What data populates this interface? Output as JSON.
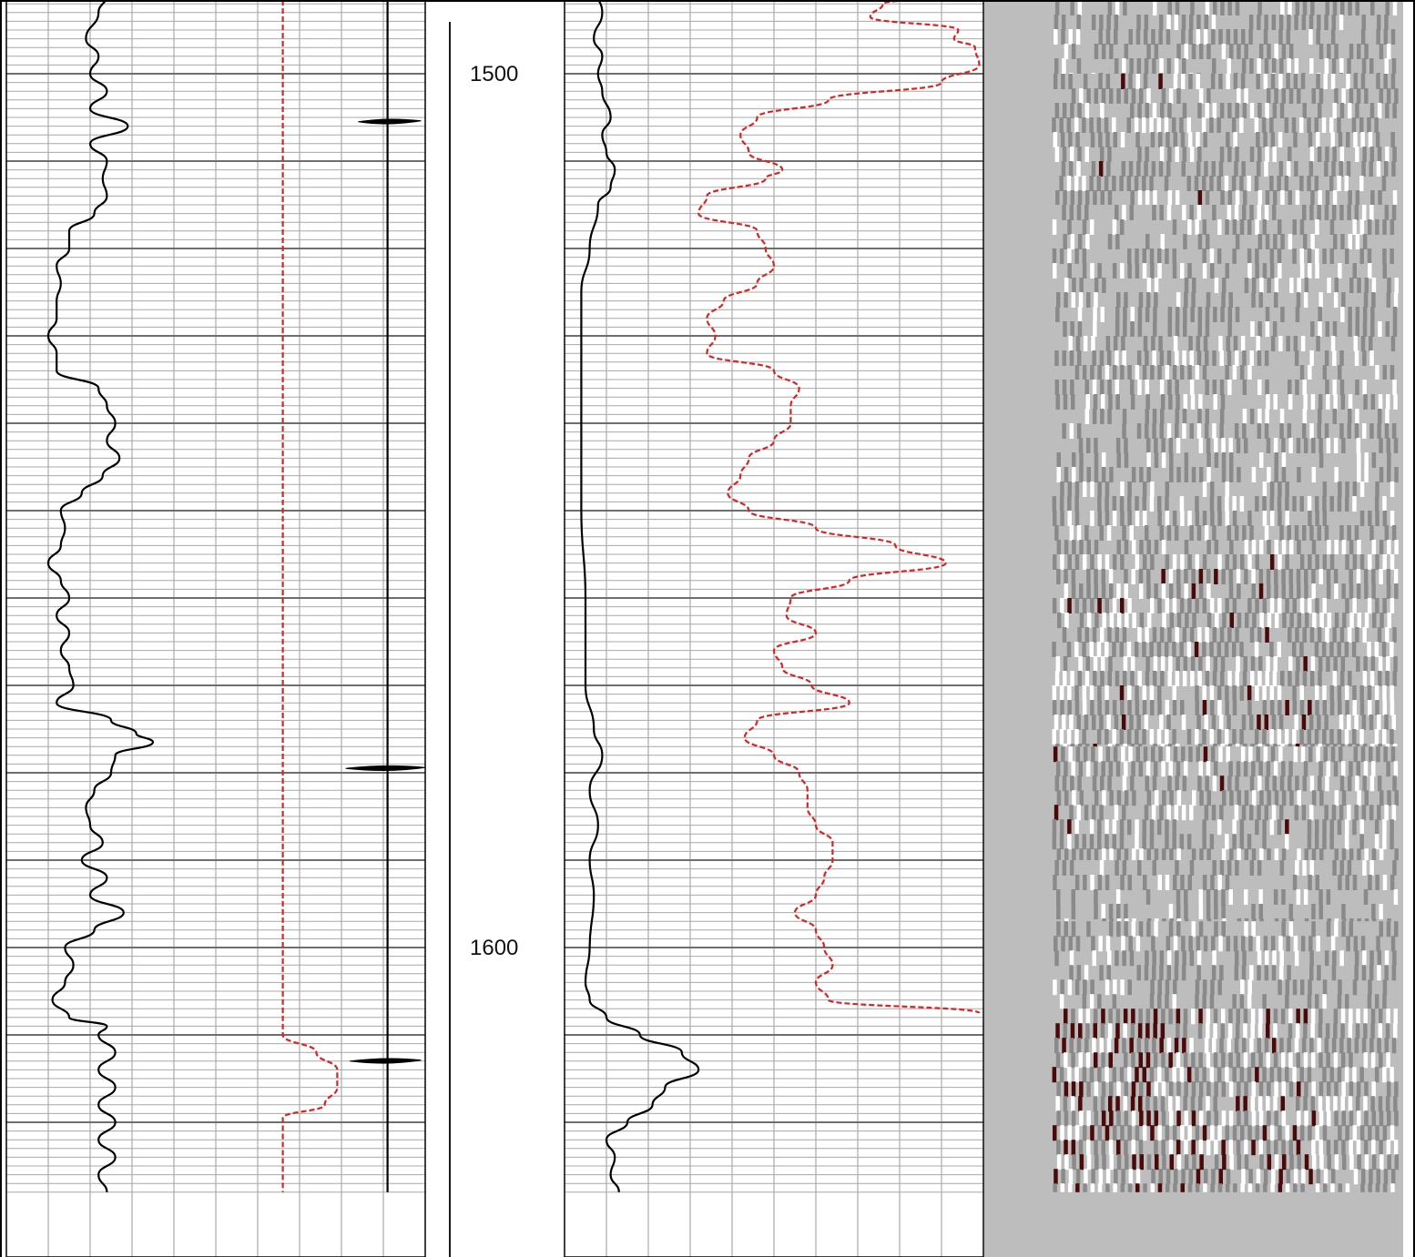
{
  "chart_data": {
    "type": "line",
    "title": "",
    "depth_axis": {
      "min": 1485,
      "max": 1628,
      "major_ticks": [
        1500,
        1600
      ],
      "tick_labels": [
        "1500",
        "1600"
      ]
    },
    "tracks": [
      {
        "name": "",
        "range": [
          0,
          10
        ],
        "series": [
          {
            "name": "",
            "color": "#000000",
            "style": "solid",
            "points": [
              [
                1485.0,
                2.9
              ],
              [
                1487.0,
                2.5
              ],
              [
                1489.0,
                2.1
              ],
              [
                1491.0,
                2.4
              ],
              [
                1493.0,
                2.2
              ],
              [
                1496.0,
                1.9
              ],
              [
                1498.0,
                2.2
              ],
              [
                1500.0,
                2.0
              ],
              [
                1502.0,
                2.4
              ],
              [
                1504.0,
                2.0
              ],
              [
                1506.0,
                2.9
              ],
              [
                1508.0,
                2.0
              ],
              [
                1510.0,
                2.4
              ],
              [
                1512.0,
                2.3
              ],
              [
                1514.0,
                2.4
              ],
              [
                1516.0,
                2.1
              ],
              [
                1518.0,
                1.5
              ],
              [
                1520.0,
                1.5
              ],
              [
                1522.0,
                1.2
              ],
              [
                1524.0,
                1.3
              ],
              [
                1526.0,
                1.2
              ],
              [
                1528.0,
                1.2
              ],
              [
                1530.0,
                1.0
              ],
              [
                1532.0,
                1.2
              ],
              [
                1534.0,
                1.2
              ],
              [
                1536.0,
                2.2
              ],
              [
                1538.0,
                2.4
              ],
              [
                1540.0,
                2.6
              ],
              [
                1542.0,
                2.4
              ],
              [
                1544.0,
                2.7
              ],
              [
                1546.0,
                2.3
              ],
              [
                1548.0,
                1.8
              ],
              [
                1550.0,
                1.3
              ],
              [
                1552.0,
                1.4
              ],
              [
                1554.0,
                1.3
              ],
              [
                1556.0,
                1.0
              ],
              [
                1558.0,
                1.3
              ],
              [
                1560.0,
                1.5
              ],
              [
                1562.0,
                1.2
              ],
              [
                1564.0,
                1.5
              ],
              [
                1566.0,
                1.3
              ],
              [
                1568.0,
                1.5
              ],
              [
                1570.0,
                1.6
              ],
              [
                1572.0,
                1.2
              ],
              [
                1574.0,
                2.5
              ],
              [
                1575.5,
                3.1
              ],
              [
                1576.5,
                3.5
              ],
              [
                1578.0,
                2.6
              ],
              [
                1580.0,
                2.5
              ],
              [
                1582.0,
                2.1
              ],
              [
                1584.0,
                1.9
              ],
              [
                1586.0,
                2.0
              ],
              [
                1588.0,
                2.3
              ],
              [
                1590.0,
                1.8
              ],
              [
                1592.0,
                2.4
              ],
              [
                1594.0,
                2.0
              ],
              [
                1596.0,
                2.8
              ],
              [
                1598.0,
                2.1
              ],
              [
                1600.0,
                1.4
              ],
              [
                1602.0,
                1.6
              ],
              [
                1604.0,
                1.4
              ],
              [
                1606.0,
                1.1
              ],
              [
                1608.0,
                1.5
              ],
              [
                1609.0,
                2.4
              ],
              [
                1610.0,
                2.2
              ],
              [
                1612.0,
                2.6
              ],
              [
                1614.0,
                2.2
              ],
              [
                1616.0,
                2.6
              ],
              [
                1618.0,
                2.2
              ],
              [
                1620.0,
                2.6
              ],
              [
                1622.0,
                2.2
              ],
              [
                1624.0,
                2.6
              ],
              [
                1626.0,
                2.2
              ],
              [
                1628.0,
                2.4
              ]
            ]
          },
          {
            "name": "",
            "color": "#dd2222",
            "style": "dashed",
            "points": [
              [
                1485.0,
                6.6
              ],
              [
                1610.0,
                6.6
              ],
              [
                1612.0,
                7.4
              ],
              [
                1614.0,
                7.9
              ],
              [
                1616.0,
                7.9
              ],
              [
                1618.0,
                7.6
              ],
              [
                1619.5,
                6.6
              ],
              [
                1628.0,
                6.6
              ]
            ]
          },
          {
            "name": "",
            "color": "#000000",
            "style": "solid",
            "points": [
              [
                1485.0,
                9.1
              ],
              [
                1628.0,
                9.1
              ]
            ]
          }
        ],
        "spikes": [
          {
            "depth": 1505.5,
            "x_from": 8.4,
            "x_to": 9.9
          },
          {
            "depth": 1579.5,
            "x_from": 8.1,
            "x_to": 10.0
          },
          {
            "depth": 1613.0,
            "x_from": 8.2,
            "x_to": 9.9
          }
        ]
      },
      {
        "name": "",
        "range": [
          0,
          10
        ],
        "series": [
          {
            "name": "",
            "color": "#000000",
            "style": "solid",
            "points": [
              [
                1485.0,
                0.6
              ],
              [
                1490.0,
                0.7
              ],
              [
                1493.0,
                0.9
              ],
              [
                1496.0,
                0.7
              ],
              [
                1498.0,
                0.9
              ],
              [
                1500.0,
                0.8
              ],
              [
                1502.0,
                0.9
              ],
              [
                1505.0,
                1.1
              ],
              [
                1507.0,
                0.9
              ],
              [
                1509.0,
                1.0
              ],
              [
                1511.0,
                1.2
              ],
              [
                1513.0,
                1.1
              ],
              [
                1515.0,
                0.8
              ],
              [
                1520.0,
                0.6
              ],
              [
                1525.0,
                0.4
              ],
              [
                1530.0,
                0.4
              ],
              [
                1540.0,
                0.4
              ],
              [
                1550.0,
                0.4
              ],
              [
                1560.0,
                0.5
              ],
              [
                1570.0,
                0.5
              ],
              [
                1575.0,
                0.7
              ],
              [
                1578.0,
                0.9
              ],
              [
                1582.0,
                0.6
              ],
              [
                1586.0,
                0.8
              ],
              [
                1590.0,
                0.6
              ],
              [
                1594.0,
                0.7
              ],
              [
                1600.0,
                0.6
              ],
              [
                1604.0,
                0.5
              ],
              [
                1606.0,
                0.6
              ],
              [
                1608.0,
                1.0
              ],
              [
                1610.0,
                1.8
              ],
              [
                1612.0,
                2.8
              ],
              [
                1614.0,
                3.2
              ],
              [
                1616.0,
                2.4
              ],
              [
                1618.0,
                2.1
              ],
              [
                1620.0,
                1.5
              ],
              [
                1622.0,
                1.0
              ],
              [
                1624.0,
                1.2
              ],
              [
                1626.0,
                1.1
              ],
              [
                1628.0,
                1.3
              ]
            ]
          },
          {
            "name": "",
            "color": "#dd2222",
            "style": "dashed",
            "points": [
              [
                1485.0,
                5.6
              ],
              [
                1487.0,
                5.6
              ],
              [
                1488.0,
                6.5
              ],
              [
                1490.0,
                7.5
              ],
              [
                1491.0,
                9.4
              ],
              [
                1492.0,
                7.6
              ],
              [
                1493.5,
                7.3
              ],
              [
                1495.0,
                9.4
              ],
              [
                1496.0,
                9.3
              ],
              [
                1497.0,
                9.8
              ],
              [
                1499.0,
                9.9
              ],
              [
                1501.0,
                9.0
              ],
              [
                1503.0,
                6.3
              ],
              [
                1505.0,
                4.6
              ],
              [
                1507.0,
                4.2
              ],
              [
                1509.0,
                4.4
              ],
              [
                1511.0,
                5.2
              ],
              [
                1512.0,
                4.8
              ],
              [
                1514.0,
                3.4
              ],
              [
                1516.0,
                3.2
              ],
              [
                1518.0,
                4.6
              ],
              [
                1520.0,
                4.8
              ],
              [
                1522.0,
                5.0
              ],
              [
                1524.0,
                4.6
              ],
              [
                1526.0,
                3.8
              ],
              [
                1528.0,
                3.4
              ],
              [
                1530.0,
                3.6
              ],
              [
                1532.0,
                3.4
              ],
              [
                1534.0,
                5.0
              ],
              [
                1536.0,
                5.6
              ],
              [
                1538.0,
                5.4
              ],
              [
                1540.0,
                5.4
              ],
              [
                1542.0,
                5.0
              ],
              [
                1544.0,
                4.4
              ],
              [
                1546.0,
                4.2
              ],
              [
                1548.0,
                3.9
              ],
              [
                1550.0,
                4.4
              ],
              [
                1552.0,
                6.0
              ],
              [
                1554.0,
                7.9
              ],
              [
                1556.0,
                9.1
              ],
              [
                1558.0,
                6.8
              ],
              [
                1560.0,
                5.4
              ],
              [
                1562.0,
                5.3
              ],
              [
                1564.0,
                6.0
              ],
              [
                1566.0,
                5.0
              ],
              [
                1568.0,
                5.2
              ],
              [
                1570.0,
                5.9
              ],
              [
                1572.0,
                6.8
              ],
              [
                1574.0,
                4.6
              ],
              [
                1576.0,
                4.3
              ],
              [
                1578.0,
                5.0
              ],
              [
                1580.0,
                5.6
              ],
              [
                1582.0,
                5.8
              ],
              [
                1584.0,
                5.8
              ],
              [
                1586.0,
                6.0
              ],
              [
                1588.0,
                6.4
              ],
              [
                1590.0,
                6.4
              ],
              [
                1592.0,
                6.2
              ],
              [
                1594.0,
                6.0
              ],
              [
                1596.0,
                5.5
              ],
              [
                1598.0,
                6.0
              ],
              [
                1600.0,
                6.2
              ],
              [
                1602.0,
                6.4
              ],
              [
                1604.0,
                6.0
              ],
              [
                1606.0,
                6.3
              ],
              [
                1607.5,
                9.9
              ]
            ]
          }
        ]
      }
    ],
    "image_track": {
      "name": "",
      "colors": {
        "background": "#bdbdbd",
        "white": "#ffffff",
        "mid": "#8a8a8a",
        "dark": "#4a0a0a"
      },
      "zones": [
        {
          "top": 1485,
          "bottom": 1500,
          "density": 0.35,
          "dark": 0.0
        },
        {
          "top": 1500,
          "bottom": 1515,
          "density": 0.4,
          "dark": 0.02
        },
        {
          "top": 1515,
          "bottom": 1535,
          "density": 0.3,
          "dark": 0.0
        },
        {
          "top": 1535,
          "bottom": 1555,
          "density": 0.35,
          "dark": 0.0
        },
        {
          "top": 1555,
          "bottom": 1577,
          "density": 0.55,
          "dark": 0.05
        },
        {
          "top": 1577,
          "bottom": 1590,
          "density": 0.5,
          "dark": 0.02
        },
        {
          "top": 1590,
          "bottom": 1597,
          "density": 0.2,
          "dark": 0.0
        },
        {
          "top": 1597,
          "bottom": 1607,
          "density": 0.3,
          "dark": 0.0
        },
        {
          "top": 1607,
          "bottom": 1628,
          "density": 0.6,
          "dark": 0.2
        }
      ]
    }
  }
}
